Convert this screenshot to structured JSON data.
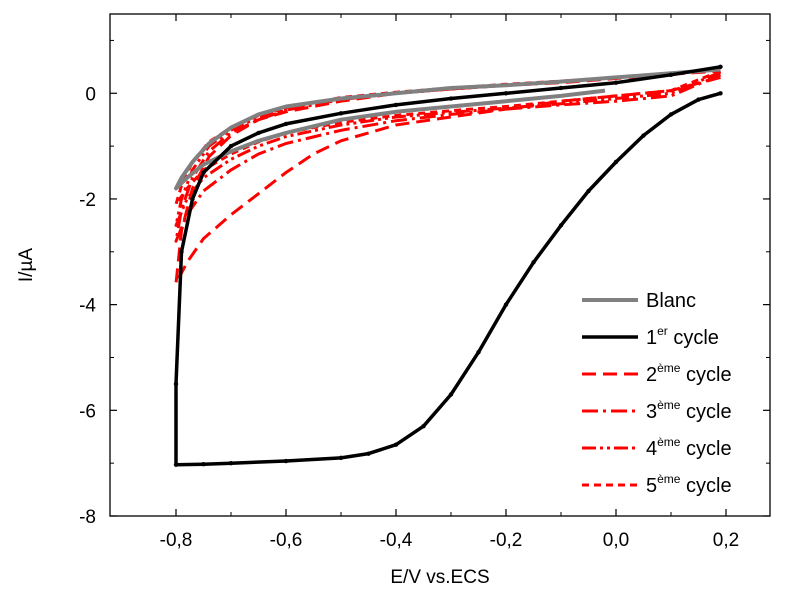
{
  "chart_data": {
    "type": "line",
    "title": "",
    "xlabel": "E/V vs.ECS",
    "ylabel": "I/µA",
    "xlim": [
      -0.92,
      0.28
    ],
    "ylim": [
      -8,
      1.5
    ],
    "x_ticks": [
      -0.8,
      -0.6,
      -0.4,
      -0.2,
      0.0,
      0.2
    ],
    "x_tick_labels": [
      "-0,8",
      "-0,6",
      "-0,4",
      "-0,2",
      "0,0",
      "0,2"
    ],
    "y_ticks": [
      -8,
      -6,
      -4,
      -2,
      0
    ],
    "y_tick_labels": [
      "-8",
      "-6",
      "-4",
      "-2",
      "0"
    ],
    "grid": false,
    "legend_position": "bottom-right",
    "series": [
      {
        "name": "Blanc",
        "legend_sup": "",
        "legend_suffix": "",
        "color": "#808080",
        "dash": "solid",
        "width": 4,
        "x": [
          -0.02,
          -0.1,
          -0.2,
          -0.3,
          -0.4,
          -0.5,
          -0.6,
          -0.65,
          -0.7,
          -0.75,
          -0.78,
          -0.8,
          -0.79,
          -0.77,
          -0.74,
          -0.7,
          -0.65,
          -0.6,
          -0.5,
          -0.4,
          -0.3,
          -0.2,
          -0.1,
          0.0,
          0.1,
          0.19
        ],
        "y": [
          0.05,
          -0.05,
          -0.15,
          -0.25,
          -0.35,
          -0.5,
          -0.75,
          -0.9,
          -1.1,
          -1.35,
          -1.6,
          -1.8,
          -1.6,
          -1.3,
          -0.95,
          -0.65,
          -0.4,
          -0.25,
          -0.1,
          0.0,
          0.1,
          0.15,
          0.22,
          0.3,
          0.38,
          0.45
        ]
      },
      {
        "name": "1",
        "legend_sup": "er",
        "legend_suffix": " cycle",
        "color": "#000000",
        "dash": "solid",
        "width": 3.5,
        "markers": true,
        "x": [
          0.19,
          0.15,
          0.1,
          0.05,
          0.0,
          -0.05,
          -0.1,
          -0.15,
          -0.2,
          -0.25,
          -0.3,
          -0.35,
          -0.4,
          -0.45,
          -0.5,
          -0.6,
          -0.7,
          -0.75,
          -0.8,
          -0.8,
          -0.79,
          -0.77,
          -0.75,
          -0.7,
          -0.65,
          -0.6,
          -0.5,
          -0.4,
          -0.3,
          -0.2,
          -0.1,
          0.0,
          0.1,
          0.19
        ],
        "y": [
          0.0,
          -0.12,
          -0.4,
          -0.8,
          -1.3,
          -1.85,
          -2.5,
          -3.2,
          -4.0,
          -4.9,
          -5.7,
          -6.3,
          -6.65,
          -6.82,
          -6.9,
          -6.96,
          -7.0,
          -7.02,
          -7.03,
          -5.5,
          -3.0,
          -2.0,
          -1.5,
          -1.0,
          -0.75,
          -0.58,
          -0.38,
          -0.22,
          -0.1,
          0.0,
          0.1,
          0.2,
          0.35,
          0.5
        ]
      },
      {
        "name": "2",
        "legend_sup": "ème",
        "legend_suffix": " cycle",
        "color": "#ff0000",
        "dash": "14,7",
        "width": 3,
        "x": [
          0.19,
          0.1,
          0.0,
          -0.1,
          -0.2,
          -0.3,
          -0.4,
          -0.5,
          -0.55,
          -0.6,
          -0.65,
          -0.7,
          -0.75,
          -0.78,
          -0.8,
          -0.79,
          -0.77,
          -0.74,
          -0.7,
          -0.65,
          -0.6,
          -0.5,
          -0.4,
          -0.3,
          -0.2,
          -0.1,
          0.0,
          0.1,
          0.19
        ],
        "y": [
          0.3,
          0.05,
          -0.05,
          -0.15,
          -0.3,
          -0.45,
          -0.6,
          -0.9,
          -1.15,
          -1.5,
          -1.9,
          -2.3,
          -2.75,
          -3.2,
          -3.6,
          -2.6,
          -1.8,
          -1.2,
          -0.8,
          -0.5,
          -0.35,
          -0.15,
          0.0,
          0.08,
          0.15,
          0.2,
          0.28,
          0.36,
          0.42
        ]
      },
      {
        "name": "3",
        "legend_sup": "ème",
        "legend_suffix": " cycle",
        "color": "#ff0000",
        "dash": "16,5,3,5",
        "width": 3,
        "x": [
          0.19,
          0.1,
          0.0,
          -0.1,
          -0.2,
          -0.3,
          -0.4,
          -0.5,
          -0.6,
          -0.65,
          -0.7,
          -0.75,
          -0.78,
          -0.8,
          -0.79,
          -0.77,
          -0.74,
          -0.7,
          -0.65,
          -0.6,
          -0.5,
          -0.4,
          -0.3,
          -0.2,
          -0.1,
          0.0,
          0.1,
          0.19
        ],
        "y": [
          0.35,
          -0.05,
          -0.15,
          -0.22,
          -0.3,
          -0.4,
          -0.52,
          -0.7,
          -0.95,
          -1.15,
          -1.45,
          -1.85,
          -2.3,
          -2.8,
          -2.2,
          -1.6,
          -1.1,
          -0.75,
          -0.5,
          -0.32,
          -0.12,
          0.0,
          0.08,
          0.15,
          0.22,
          0.3,
          0.38,
          0.45
        ]
      },
      {
        "name": "4",
        "legend_sup": "ème",
        "legend_suffix": " cycle",
        "color": "#ff0000",
        "dash": "14,4,3,4,3,4",
        "width": 3,
        "x": [
          0.19,
          0.1,
          0.0,
          -0.1,
          -0.2,
          -0.3,
          -0.4,
          -0.5,
          -0.6,
          -0.65,
          -0.7,
          -0.75,
          -0.78,
          -0.8,
          -0.79,
          -0.77,
          -0.74,
          -0.7,
          -0.65,
          -0.6,
          -0.5,
          -0.4,
          -0.3,
          -0.2,
          -0.1,
          0.0,
          0.1,
          0.19
        ],
        "y": [
          0.4,
          0.0,
          -0.1,
          -0.2,
          -0.28,
          -0.36,
          -0.45,
          -0.6,
          -0.82,
          -1.0,
          -1.25,
          -1.6,
          -2.0,
          -2.5,
          -2.0,
          -1.45,
          -1.0,
          -0.7,
          -0.45,
          -0.3,
          -0.1,
          0.0,
          0.08,
          0.15,
          0.22,
          0.3,
          0.38,
          0.46
        ]
      },
      {
        "name": "5",
        "legend_sup": "ème",
        "legend_suffix": " cycle",
        "color": "#ff0000",
        "dash": "7,5",
        "width": 3,
        "x": [
          0.19,
          0.1,
          0.0,
          -0.1,
          -0.2,
          -0.3,
          -0.4,
          -0.5,
          -0.6,
          -0.65,
          -0.7,
          -0.75,
          -0.78,
          -0.8,
          -0.79,
          -0.77,
          -0.74,
          -0.7,
          -0.65,
          -0.6,
          -0.5,
          -0.4,
          -0.3,
          -0.2,
          -0.1,
          0.0,
          0.1,
          0.19
        ],
        "y": [
          0.42,
          0.05,
          -0.05,
          -0.15,
          -0.25,
          -0.33,
          -0.42,
          -0.55,
          -0.75,
          -0.92,
          -1.15,
          -1.45,
          -1.8,
          -2.1,
          -1.75,
          -1.3,
          -0.92,
          -0.65,
          -0.42,
          -0.28,
          -0.08,
          0.02,
          0.1,
          0.17,
          0.23,
          0.3,
          0.38,
          0.47
        ]
      }
    ]
  }
}
